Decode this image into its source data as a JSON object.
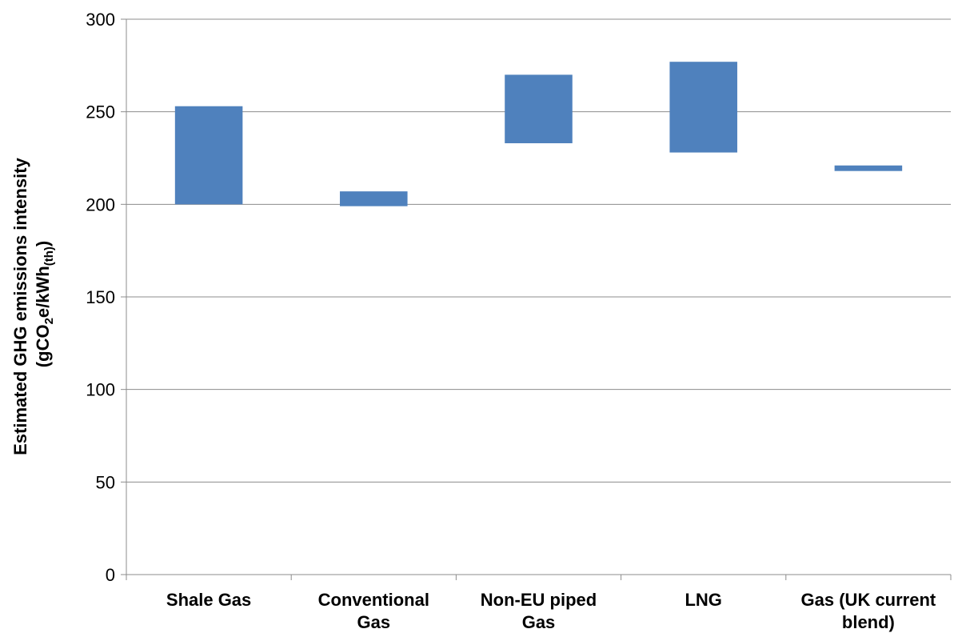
{
  "chart_data": {
    "type": "bar",
    "subtype": "floating-range",
    "categories": [
      [
        "Shale Gas"
      ],
      [
        "Conventional",
        "Gas"
      ],
      [
        "Non-EU piped",
        "Gas"
      ],
      [
        "LNG"
      ],
      [
        "Gas (UK current",
        "blend)"
      ]
    ],
    "series": [
      {
        "low": [
          200,
          199,
          233,
          228,
          218
        ],
        "high": [
          253,
          207,
          270,
          277,
          221
        ]
      }
    ],
    "ylabel": {
      "line1": "Estimated GHG emissions intensity",
      "line2_prefix": "(gCO",
      "line2_sub1": "2",
      "line2_mid": "e/kWh",
      "line2_sub2": "(th)",
      "line2_suffix": ")"
    },
    "ylim": [
      0,
      300
    ],
    "yticks": [
      0,
      50,
      100,
      150,
      200,
      250,
      300
    ],
    "grid": true,
    "legend": "none",
    "colors": {
      "bar": "#4f81bd",
      "grid": "#8c8c8c",
      "axis": "#8c8c8c"
    }
  }
}
